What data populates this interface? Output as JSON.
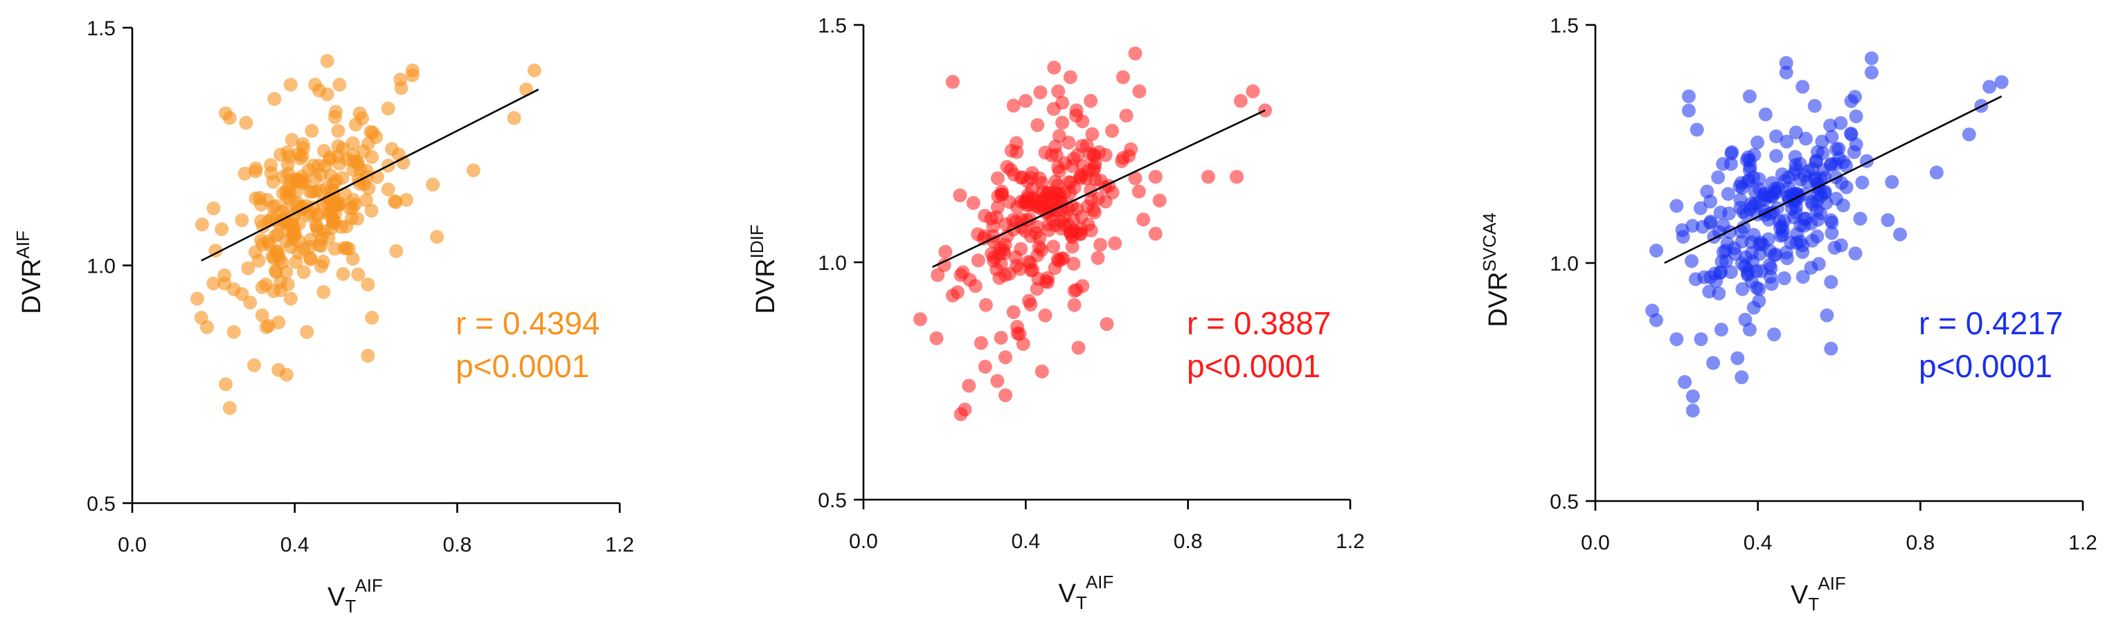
{
  "chart_data": [
    {
      "type": "scatter",
      "color": "#f7931e",
      "point_alpha": 0.6,
      "xlabel": {
        "base": "V",
        "sub": "T",
        "sup": "AIF"
      },
      "ylabel": {
        "base": "DVR",
        "sup": "AIF"
      },
      "xlim": [
        0.0,
        1.2
      ],
      "ylim": [
        0.5,
        1.5
      ],
      "xticks": [
        "0.0",
        "0.4",
        "0.8",
        "1.2"
      ],
      "yticks": [
        "0.5",
        "1.0",
        "1.5"
      ],
      "annotation": [
        "r = 0.4394",
        "p<0.0001"
      ],
      "fit_line": {
        "x": [
          0.17,
          1.0
        ],
        "y": [
          1.01,
          1.37
        ]
      },
      "point_seed": 11,
      "points": [
        [
          0.16,
          0.93
        ],
        [
          0.17,
          0.89
        ],
        [
          0.2,
          1.12
        ],
        [
          0.23,
          1.32
        ],
        [
          0.24,
          1.31
        ],
        [
          0.23,
          0.75
        ],
        [
          0.24,
          0.7
        ],
        [
          0.27,
          0.94
        ],
        [
          0.25,
          0.86
        ],
        [
          0.28,
          1.3
        ],
        [
          0.3,
          0.79
        ],
        [
          0.36,
          0.78
        ],
        [
          0.38,
          0.77
        ],
        [
          0.33,
          0.87
        ],
        [
          0.36,
          0.88
        ],
        [
          0.43,
          0.86
        ],
        [
          0.39,
          0.93
        ],
        [
          0.35,
          1.35
        ],
        [
          0.39,
          1.38
        ],
        [
          0.45,
          1.38
        ],
        [
          0.48,
          1.43
        ],
        [
          0.48,
          1.36
        ],
        [
          0.51,
          1.38
        ],
        [
          0.56,
          1.32
        ],
        [
          0.63,
          1.33
        ],
        [
          0.6,
          1.27
        ],
        [
          0.63,
          1.21
        ],
        [
          0.69,
          1.41
        ],
        [
          0.69,
          1.4
        ],
        [
          0.74,
          1.17
        ],
        [
          0.75,
          1.06
        ],
        [
          0.84,
          1.2
        ],
        [
          0.94,
          1.31
        ],
        [
          0.97,
          1.37
        ],
        [
          0.99,
          1.41
        ],
        [
          0.59,
          0.89
        ],
        [
          0.58,
          0.81
        ],
        [
          0.65,
          1.03
        ],
        [
          0.58,
          0.96
        ],
        [
          0.63,
          1.16
        ]
      ]
    },
    {
      "type": "scatter",
      "color": "#ff1a1a",
      "point_alpha": 0.55,
      "xlabel": {
        "base": "V",
        "sub": "T",
        "sup": "AIF"
      },
      "ylabel": {
        "base": "DVR",
        "sup": "IDIF"
      },
      "xlim": [
        0.0,
        1.2
      ],
      "ylim": [
        0.5,
        1.5
      ],
      "xticks": [
        "0.0",
        "0.4",
        "0.8",
        "1.2"
      ],
      "yticks": [
        "0.5",
        "1.0",
        "1.5"
      ],
      "annotation": [
        "r = 0.3887",
        "p<0.0001"
      ],
      "fit_line": {
        "x": [
          0.17,
          0.99
        ],
        "y": [
          0.99,
          1.32
        ]
      },
      "point_seed": 23,
      "points": [
        [
          0.14,
          0.88
        ],
        [
          0.18,
          0.84
        ],
        [
          0.22,
          0.93
        ],
        [
          0.22,
          1.38
        ],
        [
          0.24,
          0.68
        ],
        [
          0.25,
          0.69
        ],
        [
          0.26,
          0.74
        ],
        [
          0.3,
          0.78
        ],
        [
          0.33,
          0.75
        ],
        [
          0.35,
          0.8
        ],
        [
          0.38,
          0.85
        ],
        [
          0.44,
          0.77
        ],
        [
          0.53,
          0.82
        ],
        [
          0.52,
          0.91
        ],
        [
          0.6,
          0.87
        ],
        [
          0.37,
          1.33
        ],
        [
          0.4,
          1.34
        ],
        [
          0.47,
          1.41
        ],
        [
          0.51,
          1.39
        ],
        [
          0.48,
          1.36
        ],
        [
          0.56,
          1.34
        ],
        [
          0.64,
          1.39
        ],
        [
          0.67,
          1.44
        ],
        [
          0.68,
          1.36
        ],
        [
          0.64,
          1.22
        ],
        [
          0.72,
          1.18
        ],
        [
          0.73,
          1.13
        ],
        [
          0.69,
          1.09
        ],
        [
          0.72,
          1.06
        ],
        [
          0.85,
          1.18
        ],
        [
          0.92,
          1.18
        ],
        [
          0.99,
          1.32
        ],
        [
          0.96,
          1.36
        ],
        [
          0.93,
          1.34
        ],
        [
          0.57,
          1.2
        ],
        [
          0.62,
          1.04
        ],
        [
          0.45,
          0.96
        ],
        [
          0.54,
          0.95
        ],
        [
          0.29,
          0.83
        ],
        [
          0.35,
          0.72
        ]
      ]
    },
    {
      "type": "scatter",
      "color": "#1a2ff0",
      "point_alpha": 0.55,
      "xlabel": {
        "base": "V",
        "sub": "T",
        "sup": "AIF"
      },
      "ylabel": {
        "base": "DVR",
        "sup": "SVCA4"
      },
      "xlim": [
        0.0,
        1.2
      ],
      "ylim": [
        0.5,
        1.5
      ],
      "xticks": [
        "0.0",
        "0.4",
        "0.8",
        "1.2"
      ],
      "yticks": [
        "0.5",
        "1.0",
        "1.5"
      ],
      "annotation": [
        "r = 0.4217",
        "p<0.0001"
      ],
      "fit_line": {
        "x": [
          0.17,
          1.0
        ],
        "y": [
          1.0,
          1.35
        ]
      },
      "point_seed": 37,
      "points": [
        [
          0.14,
          0.9
        ],
        [
          0.15,
          0.88
        ],
        [
          0.2,
          1.12
        ],
        [
          0.22,
          0.75
        ],
        [
          0.24,
          0.72
        ],
        [
          0.24,
          0.69
        ],
        [
          0.23,
          1.32
        ],
        [
          0.23,
          1.35
        ],
        [
          0.25,
          1.28
        ],
        [
          0.29,
          0.79
        ],
        [
          0.35,
          0.8
        ],
        [
          0.36,
          0.76
        ],
        [
          0.31,
          0.86
        ],
        [
          0.38,
          0.86
        ],
        [
          0.44,
          0.85
        ],
        [
          0.38,
          1.35
        ],
        [
          0.47,
          1.42
        ],
        [
          0.47,
          1.4
        ],
        [
          0.51,
          1.37
        ],
        [
          0.54,
          1.33
        ],
        [
          0.63,
          1.34
        ],
        [
          0.68,
          1.43
        ],
        [
          0.68,
          1.4
        ],
        [
          0.63,
          1.27
        ],
        [
          0.73,
          1.17
        ],
        [
          0.75,
          1.06
        ],
        [
          0.84,
          1.19
        ],
        [
          0.95,
          1.33
        ],
        [
          0.97,
          1.37
        ],
        [
          1.0,
          1.38
        ],
        [
          0.92,
          1.27
        ],
        [
          0.58,
          0.82
        ],
        [
          0.57,
          0.89
        ],
        [
          0.64,
          1.02
        ],
        [
          0.58,
          0.96
        ],
        [
          0.72,
          1.09
        ],
        [
          0.6,
          1.22
        ],
        [
          0.28,
          0.94
        ],
        [
          0.2,
          0.84
        ],
        [
          0.26,
          0.84
        ]
      ]
    }
  ]
}
